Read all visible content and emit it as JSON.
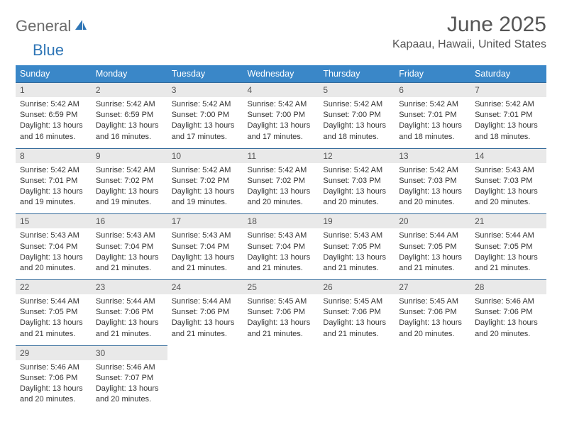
{
  "brand": {
    "part1": "General",
    "part2": "Blue"
  },
  "title": "June 2025",
  "location": "Kapaau, Hawaii, United States",
  "header_bg": "#3a87c8",
  "daynum_bg": "#e9e9e9",
  "border_color": "#346a9a",
  "text_color": "#333333",
  "weekdays": [
    "Sunday",
    "Monday",
    "Tuesday",
    "Wednesday",
    "Thursday",
    "Friday",
    "Saturday"
  ],
  "weeks": [
    [
      {
        "n": "1",
        "sunrise": "5:42 AM",
        "sunset": "6:59 PM",
        "day_h": "13",
        "day_m": "16"
      },
      {
        "n": "2",
        "sunrise": "5:42 AM",
        "sunset": "6:59 PM",
        "day_h": "13",
        "day_m": "16"
      },
      {
        "n": "3",
        "sunrise": "5:42 AM",
        "sunset": "7:00 PM",
        "day_h": "13",
        "day_m": "17"
      },
      {
        "n": "4",
        "sunrise": "5:42 AM",
        "sunset": "7:00 PM",
        "day_h": "13",
        "day_m": "17"
      },
      {
        "n": "5",
        "sunrise": "5:42 AM",
        "sunset": "7:00 PM",
        "day_h": "13",
        "day_m": "18"
      },
      {
        "n": "6",
        "sunrise": "5:42 AM",
        "sunset": "7:01 PM",
        "day_h": "13",
        "day_m": "18"
      },
      {
        "n": "7",
        "sunrise": "5:42 AM",
        "sunset": "7:01 PM",
        "day_h": "13",
        "day_m": "18"
      }
    ],
    [
      {
        "n": "8",
        "sunrise": "5:42 AM",
        "sunset": "7:01 PM",
        "day_h": "13",
        "day_m": "19"
      },
      {
        "n": "9",
        "sunrise": "5:42 AM",
        "sunset": "7:02 PM",
        "day_h": "13",
        "day_m": "19"
      },
      {
        "n": "10",
        "sunrise": "5:42 AM",
        "sunset": "7:02 PM",
        "day_h": "13",
        "day_m": "19"
      },
      {
        "n": "11",
        "sunrise": "5:42 AM",
        "sunset": "7:02 PM",
        "day_h": "13",
        "day_m": "20"
      },
      {
        "n": "12",
        "sunrise": "5:42 AM",
        "sunset": "7:03 PM",
        "day_h": "13",
        "day_m": "20"
      },
      {
        "n": "13",
        "sunrise": "5:42 AM",
        "sunset": "7:03 PM",
        "day_h": "13",
        "day_m": "20"
      },
      {
        "n": "14",
        "sunrise": "5:43 AM",
        "sunset": "7:03 PM",
        "day_h": "13",
        "day_m": "20"
      }
    ],
    [
      {
        "n": "15",
        "sunrise": "5:43 AM",
        "sunset": "7:04 PM",
        "day_h": "13",
        "day_m": "20"
      },
      {
        "n": "16",
        "sunrise": "5:43 AM",
        "sunset": "7:04 PM",
        "day_h": "13",
        "day_m": "21"
      },
      {
        "n": "17",
        "sunrise": "5:43 AM",
        "sunset": "7:04 PM",
        "day_h": "13",
        "day_m": "21"
      },
      {
        "n": "18",
        "sunrise": "5:43 AM",
        "sunset": "7:04 PM",
        "day_h": "13",
        "day_m": "21"
      },
      {
        "n": "19",
        "sunrise": "5:43 AM",
        "sunset": "7:05 PM",
        "day_h": "13",
        "day_m": "21"
      },
      {
        "n": "20",
        "sunrise": "5:44 AM",
        "sunset": "7:05 PM",
        "day_h": "13",
        "day_m": "21"
      },
      {
        "n": "21",
        "sunrise": "5:44 AM",
        "sunset": "7:05 PM",
        "day_h": "13",
        "day_m": "21"
      }
    ],
    [
      {
        "n": "22",
        "sunrise": "5:44 AM",
        "sunset": "7:05 PM",
        "day_h": "13",
        "day_m": "21"
      },
      {
        "n": "23",
        "sunrise": "5:44 AM",
        "sunset": "7:06 PM",
        "day_h": "13",
        "day_m": "21"
      },
      {
        "n": "24",
        "sunrise": "5:44 AM",
        "sunset": "7:06 PM",
        "day_h": "13",
        "day_m": "21"
      },
      {
        "n": "25",
        "sunrise": "5:45 AM",
        "sunset": "7:06 PM",
        "day_h": "13",
        "day_m": "21"
      },
      {
        "n": "26",
        "sunrise": "5:45 AM",
        "sunset": "7:06 PM",
        "day_h": "13",
        "day_m": "21"
      },
      {
        "n": "27",
        "sunrise": "5:45 AM",
        "sunset": "7:06 PM",
        "day_h": "13",
        "day_m": "20"
      },
      {
        "n": "28",
        "sunrise": "5:46 AM",
        "sunset": "7:06 PM",
        "day_h": "13",
        "day_m": "20"
      }
    ],
    [
      {
        "n": "29",
        "sunrise": "5:46 AM",
        "sunset": "7:06 PM",
        "day_h": "13",
        "day_m": "20"
      },
      {
        "n": "30",
        "sunrise": "5:46 AM",
        "sunset": "7:07 PM",
        "day_h": "13",
        "day_m": "20"
      },
      null,
      null,
      null,
      null,
      null
    ]
  ],
  "labels": {
    "sunrise": "Sunrise:",
    "sunset": "Sunset:",
    "daylight": "Daylight:",
    "hours": "hours",
    "and": "and",
    "minutes": "minutes."
  }
}
